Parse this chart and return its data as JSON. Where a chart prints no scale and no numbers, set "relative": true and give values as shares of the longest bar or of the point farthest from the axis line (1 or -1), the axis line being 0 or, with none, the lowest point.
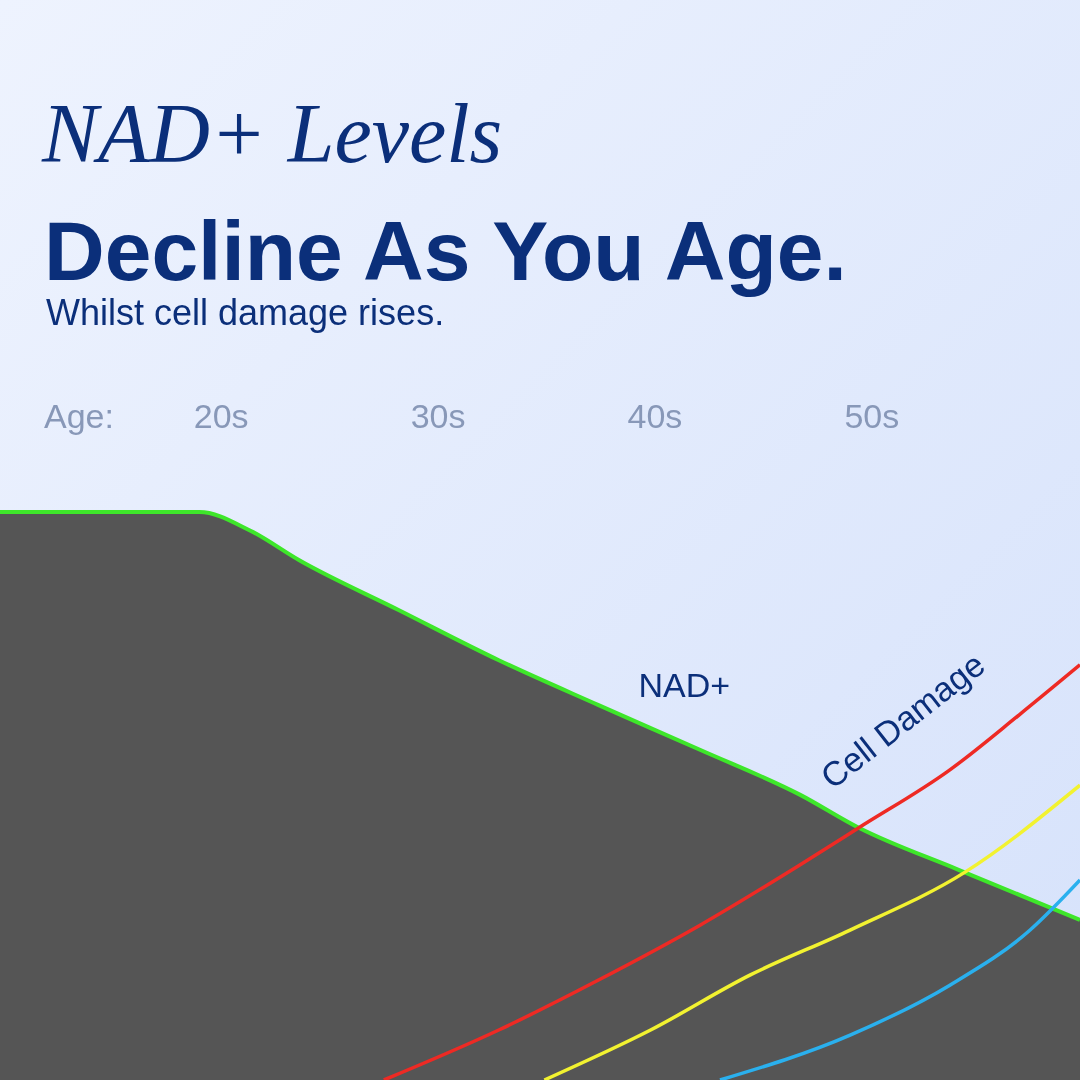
{
  "chart_data": {
    "type": "line",
    "title": "NAD+ Levels\nDecline As You Age.",
    "subtitle": "Whilst cell damage rises.",
    "xlabel": "Age:",
    "relative": true,
    "xlim": [
      9.8,
      59.6
    ],
    "xticks": [
      {
        "value": 20,
        "label": "20s"
      },
      {
        "value": 30,
        "label": "30s"
      },
      {
        "value": 40,
        "label": "40s"
      },
      {
        "value": 50,
        "label": "50s"
      }
    ],
    "series": [
      {
        "name": "NAD+",
        "type": "area",
        "color": "#3ee62a",
        "x": [
          9.8,
          19,
          21.3,
          23.6,
          28.2,
          32.8,
          37.4,
          42.1,
          46.7,
          49.4,
          54.0,
          59.6
        ],
        "values": [
          1.0,
          1.0,
          0.968,
          0.915,
          0.827,
          0.739,
          0.66,
          0.581,
          0.502,
          0.444,
          0.37,
          0.282
        ]
      },
      {
        "name": "Cell Damage",
        "color": "#ee2a24",
        "x": [
          27.5,
          32.8,
          37.4,
          42.1,
          46.7,
          49.4,
          53.6,
          56.8,
          59.6
        ],
        "values": [
          0,
          0.088,
          0.176,
          0.273,
          0.379,
          0.444,
          0.546,
          0.643,
          0.731
        ]
      },
      {
        "color": "#f2f230",
        "x": [
          34.9,
          39.8,
          44.4,
          49.0,
          54.3,
          59.6
        ],
        "values": [
          0,
          0.088,
          0.185,
          0.264,
          0.366,
          0.519
        ]
      },
      {
        "color": "#2ab0ee",
        "x": [
          43.0,
          49.0,
          53.6,
          57.3,
          59.6
        ],
        "values": [
          0,
          0.079,
          0.167,
          0.264,
          0.352
        ]
      }
    ]
  }
}
